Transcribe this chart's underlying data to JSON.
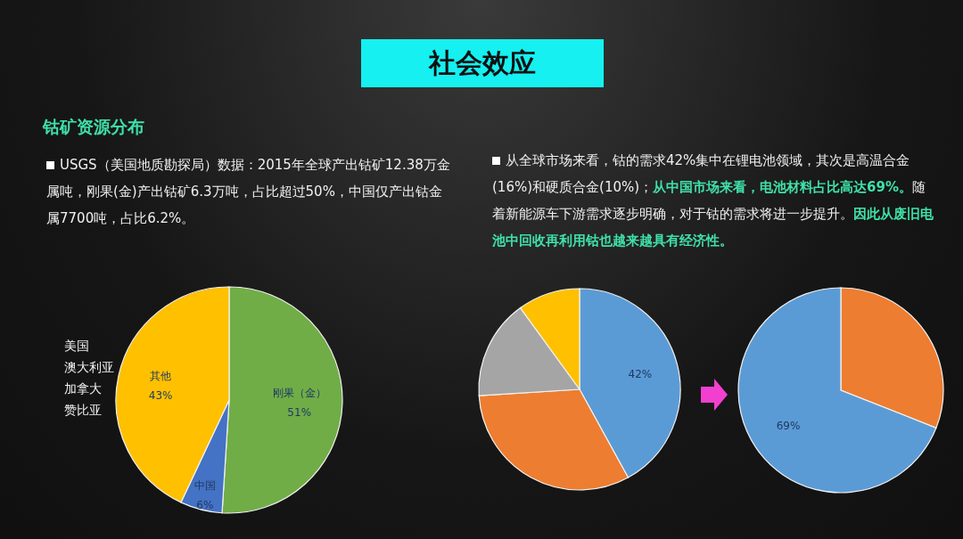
{
  "chart_data": [
    {
      "type": "other",
      "title": "社会效应"
    },
    {
      "type": "pie",
      "title": "钴矿资源分布",
      "categories": [
        "刚果（金）",
        "中国",
        "其他"
      ],
      "values": [
        51,
        6,
        43
      ],
      "colors": [
        "#70ad47",
        "#4472c4",
        "#ffc000"
      ],
      "value_labels": [
        "51%",
        "6%",
        "43%"
      ],
      "annotations": [
        "USGS（美国地质勘探局）数据：2015年全球产出钴矿12.38万金属吨，刚果(金)产出钴矿6.3万吨，占比超过50%，中国仅产出钴金属7700吨，占比6.2%。",
        "美国",
        "澳大利亚",
        "加拿大",
        "赞比亚"
      ]
    },
    {
      "type": "pie",
      "categories": [
        null,
        null,
        null,
        null
      ],
      "values": [
        42,
        32,
        16,
        10
      ],
      "colors": [
        "#5b9bd5",
        "#ed7d31",
        "#a5a5a5",
        "#ffc000"
      ],
      "value_labels": [
        "42%",
        null,
        null,
        null
      ],
      "annotations": [
        "从全球市场来看，钴的需求42%集中在锂电池领域，其次是高温合金(16%)和硬质合金(10%)；",
        "从中国市场来看，电池材料占比高达69%。",
        "随着新能源车下游需求逐步明确，对于钴的需求将进一步提升。",
        "因此从废旧电池中回收再利用钴也越来越具有经济性。"
      ]
    },
    {
      "type": "pie",
      "categories": [
        null,
        null
      ],
      "values": [
        31,
        69
      ],
      "colors": [
        "#ed7d31",
        "#5b9bd5"
      ],
      "value_labels": [
        null,
        "69%"
      ]
    }
  ]
}
